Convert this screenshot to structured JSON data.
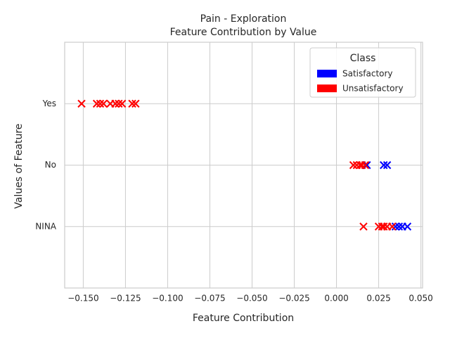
{
  "chart_data": {
    "type": "scatter",
    "title": "Pain - Exploration",
    "subtitle": "Feature Contribution by Value",
    "x_label": "Feature Contribution",
    "y_label": "Values of Feature",
    "categories": [
      "NINA",
      "No",
      "Yes"
    ],
    "xlim": [
      -0.161,
      0.051
    ],
    "xticks": [
      {
        "value": -0.15,
        "label": "−0.150"
      },
      {
        "value": -0.125,
        "label": "−0.125"
      },
      {
        "value": -0.1,
        "label": "−0.100"
      },
      {
        "value": -0.075,
        "label": "−0.075"
      },
      {
        "value": -0.05,
        "label": "−0.050"
      },
      {
        "value": -0.025,
        "label": "−0.025"
      },
      {
        "value": 0,
        "label": "0.000"
      },
      {
        "value": 0.025,
        "label": "0.025"
      },
      {
        "value": 0.05,
        "label": "0.050"
      }
    ],
    "grid": true,
    "legend": {
      "title": "Class",
      "position": "upper right"
    },
    "series": [
      {
        "name": "Satisfactory",
        "color": "#0000ff",
        "values": [
          0.018,
          0.028,
          0.03,
          0.035,
          0.037,
          0.039,
          0.042
        ],
        "y": [
          "No",
          "No",
          "No",
          "NINA",
          "NINA",
          "NINA",
          "NINA"
        ]
      },
      {
        "name": "Unsatisfactory",
        "color": "#ff0000",
        "values": [
          -0.151,
          -0.142,
          -0.14,
          -0.138,
          -0.134,
          -0.131,
          -0.129,
          -0.127,
          -0.121,
          -0.119,
          0.01,
          0.012,
          0.014,
          0.015,
          0.017,
          0.016,
          0.025,
          0.027,
          0.028,
          0.03,
          0.033
        ],
        "y": [
          "Yes",
          "Yes",
          "Yes",
          "Yes",
          "Yes",
          "Yes",
          "Yes",
          "Yes",
          "Yes",
          "Yes",
          "No",
          "No",
          "No",
          "No",
          "No",
          "NINA",
          "NINA",
          "NINA",
          "NINA",
          "NINA",
          "NINA"
        ]
      }
    ]
  }
}
